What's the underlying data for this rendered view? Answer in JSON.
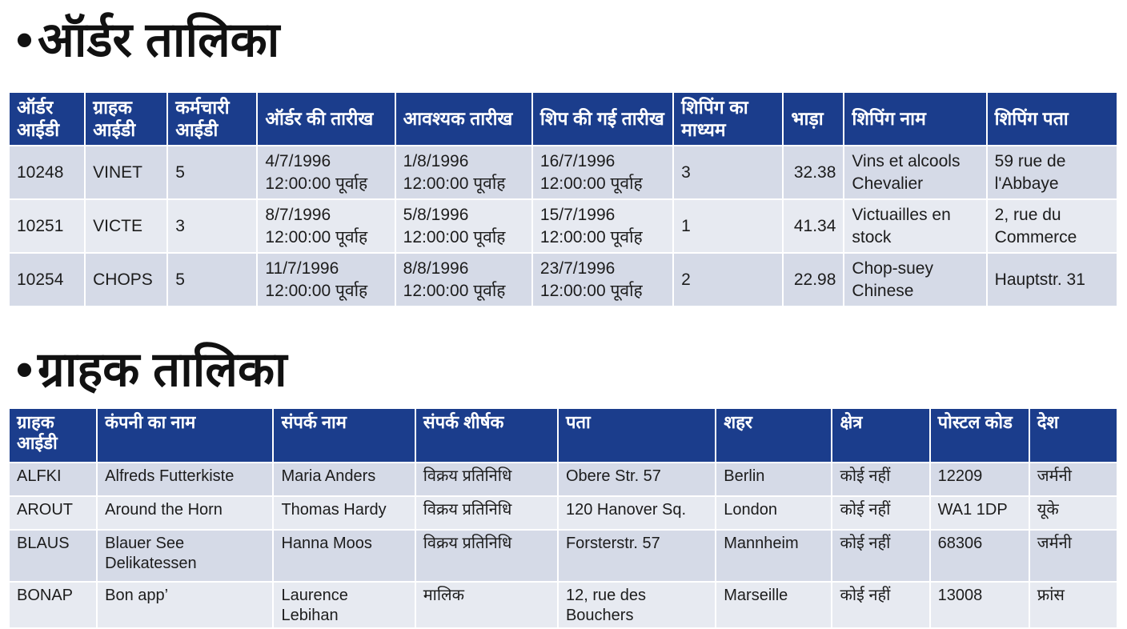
{
  "order_table": {
    "title": "ऑर्डर तालिका",
    "columns": [
      "ऑर्डर आईडी",
      "ग्राहक आईडी",
      "कर्मचारी आईडी",
      "ऑर्डर की तारीख",
      "आवश्यक तारीख",
      "शिप की गई तारीख",
      "शिपिंग का माध्यम",
      "भाड़ा",
      "शिपिंग नाम",
      "शिपिंग पता"
    ],
    "rows": [
      [
        "10248",
        "VINET",
        "5",
        "4/7/1996 12:00:00 पूर्वाह",
        "1/8/1996 12:00:00 पूर्वाह",
        "16/7/1996 12:00:00 पूर्वाह",
        "3",
        "32.38",
        "Vins et alcools Chevalier",
        "59 rue de l'Abbaye"
      ],
      [
        "10251",
        "VICTE",
        "3",
        "8/7/1996 12:00:00 पूर्वाह",
        "5/8/1996 12:00:00 पूर्वाह",
        "15/7/1996 12:00:00 पूर्वाह",
        "1",
        "41.34",
        "Victuailles en stock",
        "2, rue du Commerce"
      ],
      [
        "10254",
        "CHOPS",
        "5",
        "11/7/1996 12:00:00 पूर्वाह",
        "8/8/1996 12:00:00 पूर्वाह",
        "23/7/1996 12:00:00 पूर्वाह",
        "2",
        "22.98",
        "Chop-suey Chinese",
        "Hauptstr. 31"
      ]
    ]
  },
  "customer_table": {
    "title": "ग्राहक तालिका",
    "columns": [
      "ग्राहक आईडी",
      "कंपनी का नाम",
      "संपर्क नाम",
      "संपर्क शीर्षक",
      "पता",
      "शहर",
      "क्षेत्र",
      "पोस्टल कोड",
      "देश"
    ],
    "rows": [
      [
        "ALFKI",
        "Alfreds Futterkiste",
        "Maria Anders",
        "विक्रय प्रतिनिधि",
        "Obere Str. 57",
        "Berlin",
        "कोई नहीं",
        "12209",
        "जर्मनी"
      ],
      [
        "AROUT",
        "Around the Horn",
        "Thomas Hardy",
        "विक्रय प्रतिनिधि",
        "120 Hanover Sq.",
        "London",
        "कोई नहीं",
        "WA1 1DP",
        "यूके"
      ],
      [
        "BLAUS",
        "Blauer See Delikatessen",
        "Hanna Moos",
        "विक्रय प्रतिनिधि",
        "Forsterstr. 57",
        "Mannheim",
        "कोई नहीं",
        "68306",
        "जर्मनी"
      ],
      [
        "BONAP",
        "Bon app’",
        "Laurence Lebihan",
        "मालिक",
        "12, rue des Bouchers",
        "Marseille",
        "कोई नहीं",
        "13008",
        "फ्रांस"
      ]
    ]
  }
}
